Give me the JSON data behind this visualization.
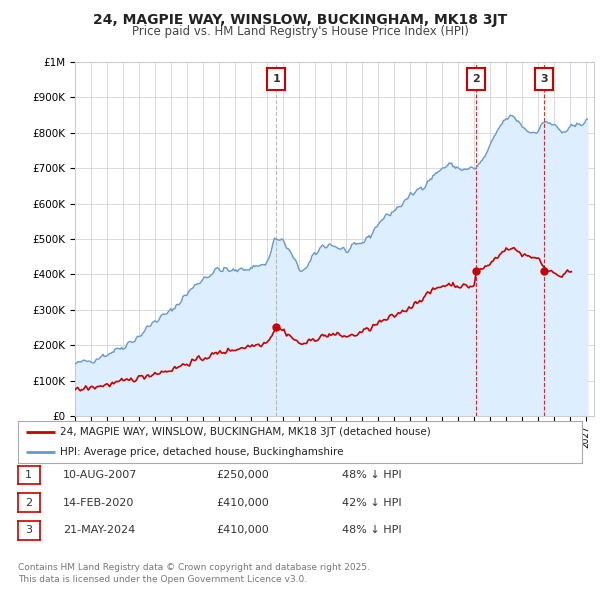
{
  "title": "24, MAGPIE WAY, WINSLOW, BUCKINGHAM, MK18 3JT",
  "subtitle": "Price paid vs. HM Land Registry's House Price Index (HPI)",
  "bg_color": "#ffffff",
  "plot_bg_color": "#ffffff",
  "grid_color": "#cccccc",
  "hpi_color": "#6699cc",
  "hpi_fill_color": "#ddeeff",
  "price_color": "#cc0000",
  "vline_color_1": "#aaaaaa",
  "vline_color_23": "#cc0000",
  "ylim": [
    0,
    1000000
  ],
  "yticks": [
    0,
    100000,
    200000,
    300000,
    400000,
    500000,
    600000,
    700000,
    800000,
    900000,
    1000000
  ],
  "ytick_labels": [
    "£0",
    "£100K",
    "£200K",
    "£300K",
    "£400K",
    "£500K",
    "£600K",
    "£700K",
    "£800K",
    "£900K",
    "£1M"
  ],
  "xlim_start": 1995.0,
  "xlim_end": 2027.5,
  "sales": [
    {
      "year": 2007.61,
      "price": 250000,
      "label": "1"
    },
    {
      "year": 2020.12,
      "price": 410000,
      "label": "2"
    },
    {
      "year": 2024.39,
      "price": 410000,
      "label": "3"
    }
  ],
  "sale_table": [
    {
      "num": "1",
      "date": "10-AUG-2007",
      "price": "£250,000",
      "note": "48% ↓ HPI"
    },
    {
      "num": "2",
      "date": "14-FEB-2020",
      "price": "£410,000",
      "note": "42% ↓ HPI"
    },
    {
      "num": "3",
      "date": "21-MAY-2024",
      "price": "£410,000",
      "note": "48% ↓ HPI"
    }
  ],
  "footer": "Contains HM Land Registry data © Crown copyright and database right 2025.\nThis data is licensed under the Open Government Licence v3.0.",
  "legend_label_price": "24, MAGPIE WAY, WINSLOW, BUCKINGHAM, MK18 3JT (detached house)",
  "legend_label_hpi": "HPI: Average price, detached house, Buckinghamshire"
}
